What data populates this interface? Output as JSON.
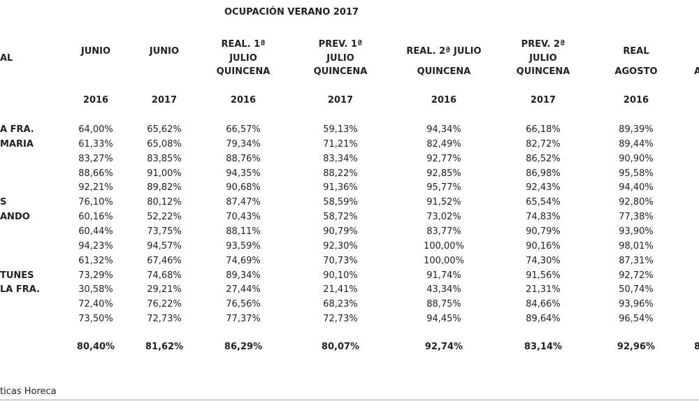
{
  "title": "OCUPACIÓN VERANO 2017",
  "header": {
    "first": "AL",
    "columns": [
      {
        "lines": [
          "JUNIO"
        ],
        "year": "2016"
      },
      {
        "lines": [
          "JUNIO"
        ],
        "year": "2017"
      },
      {
        "lines": [
          "REAL. 1ª",
          "JULIO",
          "QUINCENA"
        ],
        "year": "2016"
      },
      {
        "lines": [
          "PREV. 1ª",
          "JULIO",
          "QUINCENA"
        ],
        "year": "2017"
      },
      {
        "lines": [
          "REAL. 2ª JULIO",
          "QUINCENA"
        ],
        "year": "2016"
      },
      {
        "lines": [
          "PREV. 2ª",
          "JULIO",
          "QUINCENA"
        ],
        "year": "2017"
      },
      {
        "lines": [
          "REAL",
          "AGOSTO"
        ],
        "year": "2016"
      }
    ],
    "cropped": "A"
  },
  "rows": [
    {
      "label": "A FRA.",
      "values": [
        "64,00%",
        "65,62%",
        "66,57%",
        "59,13%",
        "94,34%",
        "66,18%",
        "89,39%"
      ]
    },
    {
      "label": "MARIA",
      "values": [
        "61,33%",
        "65,08%",
        "79,34%",
        "71,21%",
        "82,49%",
        "82,72%",
        "89,44%"
      ]
    },
    {
      "values": [
        "83,27%",
        "83,85%",
        "88,76%",
        "83,34%",
        "92,77%",
        "86,52%",
        "90,90%"
      ]
    },
    {
      "values": [
        "88,66%",
        "91,00%",
        "94,35%",
        "88,22%",
        "92,85%",
        "86,98%",
        "95,58%"
      ]
    },
    {
      "values": [
        "92,21%",
        "89,82%",
        "90,68%",
        "91,36%",
        "95,77%",
        "92,43%",
        "94,40%"
      ]
    },
    {
      "label": "S",
      "values": [
        "76,10%",
        "80,12%",
        "87,47%",
        "58,59%",
        "91,52%",
        "65,54%",
        "92,80%"
      ]
    },
    {
      "label": "ANDO",
      "values": [
        "60,16%",
        "52,22%",
        "70,43%",
        "58,72%",
        "73,02%",
        "74,83%",
        "77,38%"
      ]
    },
    {
      "values": [
        "60,44%",
        "73,75%",
        "88,11%",
        "90,79%",
        "83,77%",
        "90,79%",
        "93,90%"
      ]
    },
    {
      "values": [
        "94,23%",
        "94,57%",
        "93,59%",
        "92,30%",
        "100,00%",
        "90,16%",
        "98,01%"
      ]
    },
    {
      "values": [
        "61,32%",
        "67,46%",
        "74,69%",
        "70,73%",
        "100,00%",
        "74,30%",
        "87,31%"
      ]
    },
    {
      "label": "TUNES",
      "values": [
        "73,29%",
        "74,68%",
        "89,34%",
        "90,10%",
        "91,74%",
        "91,56%",
        "92,72%"
      ]
    },
    {
      "label": "LA FRA.",
      "values": [
        "30,58%",
        "29,21%",
        "27,44%",
        "21,41%",
        "43,34%",
        "21,31%",
        "50,74%"
      ]
    },
    {
      "values": [
        "72,40%",
        "76,22%",
        "76,56%",
        "68,23%",
        "88,75%",
        "84,66%",
        "93,96%"
      ]
    },
    {
      "values": [
        "73,50%",
        "72,73%",
        "77,37%",
        "72,73%",
        "94,45%",
        "89,64%",
        "96,54%"
      ]
    }
  ],
  "total": {
    "values": [
      "80,40%",
      "81,62%",
      "86,29%",
      "80,07%",
      "92,74%",
      "83,14%",
      "92,96%"
    ],
    "cropped": "8"
  },
  "footer": "ticas Horeca"
}
